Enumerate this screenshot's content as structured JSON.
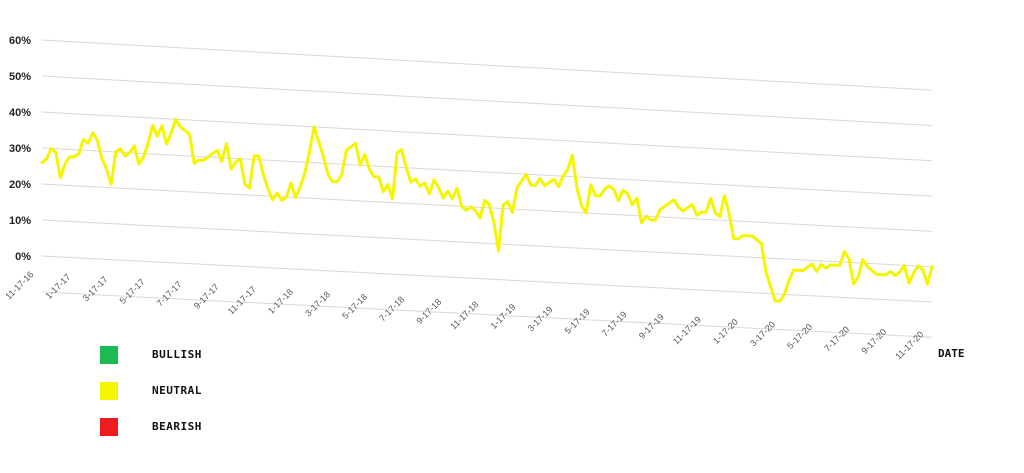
{
  "chart_data": {
    "type": "line",
    "title": "",
    "xlabel": "DATE",
    "ylabel": "",
    "ylim": [
      0,
      60
    ],
    "y_ticks": [
      "0%",
      "10%",
      "20%",
      "30%",
      "40%",
      "50%",
      "60%"
    ],
    "x_ticks": [
      "11-17-16",
      "1-17-17",
      "3-17-17",
      "5-17-17",
      "7-17-17",
      "9-17-17",
      "11-17-17",
      "1-17-18",
      "3-17-18",
      "5-17-18",
      "7-17-18",
      "9-17-18",
      "11-17-18",
      "1-17-19",
      "3-17-19",
      "5-17-19",
      "7-17-19",
      "9-17-19",
      "11-17-19",
      "1-17-20",
      "3-17-20",
      "5-17-20",
      "7-17-20",
      "9-17-20",
      "11-17-20"
    ],
    "grid": true,
    "legend": [
      {
        "label": "BULLISH",
        "color": "#1db954"
      },
      {
        "label": "NEUTRAL",
        "color": "#f5f500"
      },
      {
        "label": "BEARISH",
        "color": "#ee1c1c"
      }
    ],
    "series": [
      {
        "name": "NEUTRAL",
        "color": "#f5f500",
        "x_start": "11-17-16",
        "x_end": "11-17-20",
        "values": [
          26,
          27,
          30,
          29,
          22,
          26,
          28,
          28,
          29,
          33,
          32,
          35,
          33,
          28,
          25,
          21,
          30,
          31,
          29,
          30,
          32,
          27,
          29,
          33,
          38,
          35,
          38,
          33,
          36,
          40,
          38,
          37,
          36,
          28,
          29,
          29,
          30,
          31,
          32,
          29,
          34,
          27,
          29,
          30,
          23,
          22,
          31,
          31,
          26,
          22,
          19,
          21,
          19,
          20,
          24,
          20,
          23,
          27,
          33,
          40,
          36,
          32,
          27,
          25,
          25,
          27,
          34,
          35,
          36,
          30,
          33,
          29,
          27,
          27,
          23,
          25,
          21,
          34,
          35,
          30,
          26,
          27,
          25,
          26,
          23,
          27,
          25,
          22,
          24,
          22,
          25,
          20,
          19,
          20,
          19,
          17,
          22,
          21,
          16,
          8,
          21,
          22,
          19,
          26,
          28,
          30,
          27,
          27,
          29,
          27,
          28,
          29,
          27,
          30,
          32,
          36,
          27,
          22,
          20,
          28,
          25,
          25,
          27,
          28,
          27,
          24,
          27,
          26,
          23,
          25,
          18,
          20,
          19,
          19,
          22,
          23,
          24,
          25,
          23,
          22,
          23,
          24,
          21,
          22,
          22,
          26,
          22,
          21,
          27,
          22,
          15,
          15,
          16,
          16,
          16,
          15,
          14,
          6,
          2,
          -2,
          -2,
          0,
          4,
          7,
          7,
          7,
          8,
          9,
          7,
          9,
          8,
          9,
          9,
          9,
          13,
          11,
          4,
          6,
          11,
          9,
          8,
          7,
          7,
          7,
          8,
          7,
          8,
          10,
          5,
          8,
          10,
          9,
          5,
          10
        ]
      }
    ]
  }
}
